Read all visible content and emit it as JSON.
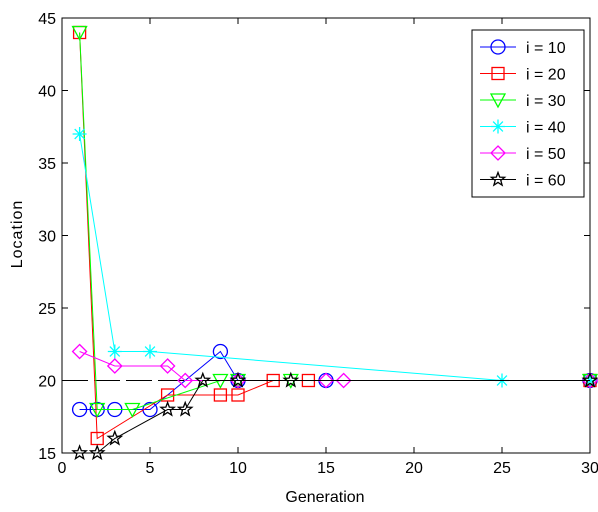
{
  "chart_data": {
    "type": "line",
    "title": "",
    "xlabel": "Generation",
    "ylabel": "Location",
    "xlim": [
      0,
      30
    ],
    "ylim": [
      15,
      45
    ],
    "xticks": [
      0,
      5,
      10,
      15,
      20,
      25,
      30
    ],
    "yticks": [
      15,
      20,
      25,
      30,
      35,
      40,
      45
    ],
    "grid": false,
    "legend_position": "top-right",
    "reference_line": {
      "y": 20,
      "style": "dashed",
      "color": "#000000"
    },
    "series": [
      {
        "name": "i = 10",
        "color": "#0000ff",
        "marker": "circle",
        "x": [
          1,
          2,
          3,
          5,
          9,
          10,
          15,
          30
        ],
        "y": [
          18,
          18,
          18,
          18,
          22,
          20,
          20,
          20
        ]
      },
      {
        "name": "i = 20",
        "color": "#ff0000",
        "marker": "square",
        "x": [
          1,
          2,
          6,
          9,
          10,
          12,
          14,
          30
        ],
        "y": [
          44,
          16,
          19,
          19,
          19,
          20,
          20,
          20
        ]
      },
      {
        "name": "i = 30",
        "color": "#00ff00",
        "marker": "triangle-down",
        "x": [
          1,
          2,
          4,
          9,
          10,
          13,
          30
        ],
        "y": [
          44,
          18,
          18,
          20,
          20,
          20,
          20
        ]
      },
      {
        "name": "i = 40",
        "color": "#00ffff",
        "marker": "asterisk",
        "x": [
          1,
          3,
          5,
          25,
          30
        ],
        "y": [
          37,
          22,
          22,
          20,
          20
        ]
      },
      {
        "name": "i = 50",
        "color": "#ff00ff",
        "marker": "diamond",
        "x": [
          1,
          3,
          6,
          7,
          10,
          15,
          16,
          30
        ],
        "y": [
          22,
          21,
          21,
          20,
          20,
          20,
          20,
          20
        ]
      },
      {
        "name": "i = 60",
        "color": "#000000",
        "marker": "star",
        "x": [
          1,
          2,
          3,
          6,
          7,
          8,
          10,
          13,
          30
        ],
        "y": [
          15,
          15,
          16,
          18,
          18,
          20,
          20,
          20,
          20
        ]
      }
    ]
  }
}
